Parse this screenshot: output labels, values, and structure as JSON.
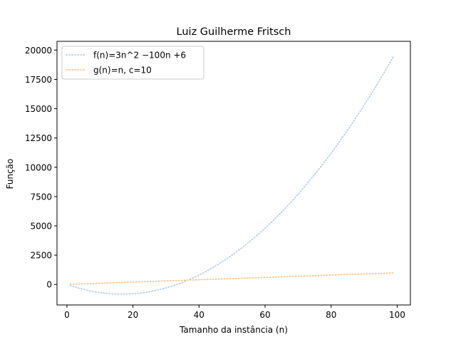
{
  "chart_data": {
    "type": "line",
    "title": "Luiz Guilherme Fritsch",
    "xlabel": "Tamanho da instância (n)",
    "ylabel": "Função",
    "xlim": [
      -3,
      104
    ],
    "ylim": [
      -1750,
      20750
    ],
    "xticks": [
      0,
      20,
      40,
      60,
      80,
      100
    ],
    "yticks": [
      0,
      2500,
      5000,
      7500,
      10000,
      12500,
      15000,
      17500,
      20000
    ],
    "grid": false,
    "legend_position": "top-left",
    "x_range": [
      1,
      99
    ],
    "series": [
      {
        "name": "f(n)=3n^2 −100n +6",
        "formula": "3n^2-100n+6",
        "color": "#aec7e8",
        "linestyle": "dotted"
      },
      {
        "name": "g(n)=n, c=10",
        "formula": "10n",
        "color": "#ffbb78",
        "linestyle": "dotted"
      }
    ]
  }
}
